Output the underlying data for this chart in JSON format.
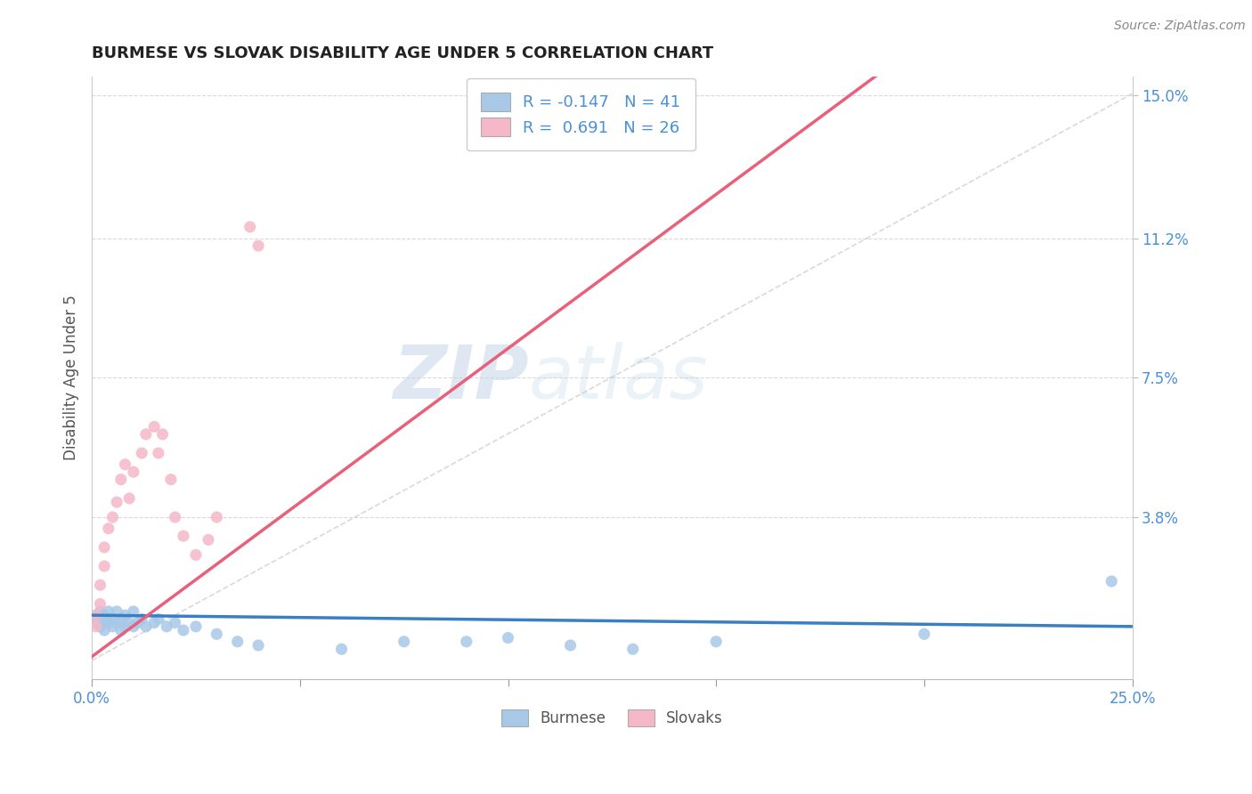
{
  "title": "BURMESE VS SLOVAK DISABILITY AGE UNDER 5 CORRELATION CHART",
  "source": "Source: ZipAtlas.com",
  "ylabel": "Disability Age Under 5",
  "xlim": [
    0.0,
    0.25
  ],
  "ylim": [
    -0.005,
    0.155
  ],
  "yticks": [
    0.038,
    0.075,
    0.112,
    0.15
  ],
  "yticklabels": [
    "3.8%",
    "7.5%",
    "11.2%",
    "15.0%"
  ],
  "burmese_color": "#a8c8e8",
  "slovak_color": "#f5b8c8",
  "burmese_R": -0.147,
  "burmese_N": 41,
  "slovak_R": 0.691,
  "slovak_N": 26,
  "burmese_line_color": "#3a7fc1",
  "slovak_line_color": "#e8607a",
  "ref_line_color": "#c0c0c0",
  "grid_color": "#d0d0d0",
  "title_color": "#222222",
  "axis_color": "#4a90d9",
  "watermark_zip_color": "#c8ddf0",
  "watermark_atlas_color": "#c8ddf0",
  "burmese_scatter_x": [
    0.001,
    0.001,
    0.002,
    0.002,
    0.003,
    0.003,
    0.003,
    0.004,
    0.004,
    0.005,
    0.005,
    0.006,
    0.006,
    0.007,
    0.007,
    0.008,
    0.008,
    0.009,
    0.01,
    0.01,
    0.011,
    0.012,
    0.013,
    0.015,
    0.016,
    0.018,
    0.02,
    0.022,
    0.025,
    0.03,
    0.035,
    0.04,
    0.06,
    0.075,
    0.09,
    0.1,
    0.115,
    0.13,
    0.15,
    0.2,
    0.245
  ],
  "burmese_scatter_y": [
    0.012,
    0.01,
    0.013,
    0.009,
    0.012,
    0.011,
    0.008,
    0.013,
    0.01,
    0.011,
    0.009,
    0.013,
    0.01,
    0.011,
    0.008,
    0.012,
    0.009,
    0.01,
    0.013,
    0.009,
    0.01,
    0.011,
    0.009,
    0.01,
    0.011,
    0.009,
    0.01,
    0.008,
    0.009,
    0.007,
    0.005,
    0.004,
    0.003,
    0.005,
    0.005,
    0.006,
    0.004,
    0.003,
    0.005,
    0.007,
    0.021
  ],
  "slovak_scatter_x": [
    0.001,
    0.001,
    0.002,
    0.002,
    0.003,
    0.003,
    0.004,
    0.005,
    0.006,
    0.007,
    0.008,
    0.009,
    0.01,
    0.012,
    0.013,
    0.015,
    0.016,
    0.017,
    0.019,
    0.02,
    0.022,
    0.025,
    0.028,
    0.03,
    0.038,
    0.04
  ],
  "slovak_scatter_y": [
    0.012,
    0.009,
    0.015,
    0.02,
    0.025,
    0.03,
    0.035,
    0.038,
    0.042,
    0.048,
    0.052,
    0.043,
    0.05,
    0.055,
    0.06,
    0.062,
    0.055,
    0.06,
    0.048,
    0.038,
    0.033,
    0.028,
    0.032,
    0.038,
    0.115,
    0.11
  ]
}
